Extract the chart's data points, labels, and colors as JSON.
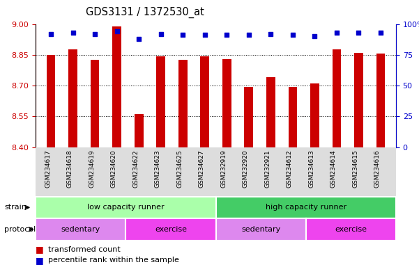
{
  "title": "GDS3131 / 1372530_at",
  "samples": [
    "GSM234617",
    "GSM234618",
    "GSM234619",
    "GSM234620",
    "GSM234622",
    "GSM234623",
    "GSM234625",
    "GSM234627",
    "GSM232919",
    "GSM232920",
    "GSM232921",
    "GSM234612",
    "GSM234613",
    "GSM234614",
    "GSM234615",
    "GSM234616"
  ],
  "transformed_count": [
    8.85,
    8.875,
    8.825,
    8.99,
    8.56,
    8.843,
    8.825,
    8.843,
    8.83,
    8.695,
    8.74,
    8.695,
    8.71,
    8.875,
    8.86,
    8.855
  ],
  "percentile_rank": [
    92,
    93,
    92,
    94,
    88,
    92,
    91,
    91,
    91,
    91,
    92,
    91,
    90,
    93,
    93,
    93
  ],
  "ylim_left": [
    8.4,
    9.0
  ],
  "ylim_right": [
    0,
    100
  ],
  "yticks_left": [
    8.4,
    8.55,
    8.7,
    8.85,
    9.0
  ],
  "yticks_right": [
    0,
    25,
    50,
    75,
    100
  ],
  "bar_color": "#cc0000",
  "dot_color": "#0000cc",
  "strain_groups": [
    {
      "label": "low capacity runner",
      "start": 0,
      "end": 8,
      "color": "#aaffaa"
    },
    {
      "label": "high capacity runner",
      "start": 8,
      "end": 16,
      "color": "#44cc66"
    }
  ],
  "protocol_groups": [
    {
      "label": "sedentary",
      "start": 0,
      "end": 4,
      "color": "#dd88ee"
    },
    {
      "label": "exercise",
      "start": 4,
      "end": 8,
      "color": "#ee44ee"
    },
    {
      "label": "sedentary",
      "start": 8,
      "end": 12,
      "color": "#dd88ee"
    },
    {
      "label": "exercise",
      "start": 12,
      "end": 16,
      "color": "#ee44ee"
    }
  ],
  "legend_items": [
    {
      "label": "transformed count",
      "color": "#cc0000"
    },
    {
      "label": "percentile rank within the sample",
      "color": "#0000cc"
    }
  ],
  "tick_label_color": "#cc0000",
  "right_tick_label_color": "#0000cc",
  "bg_color": "#dddddd"
}
